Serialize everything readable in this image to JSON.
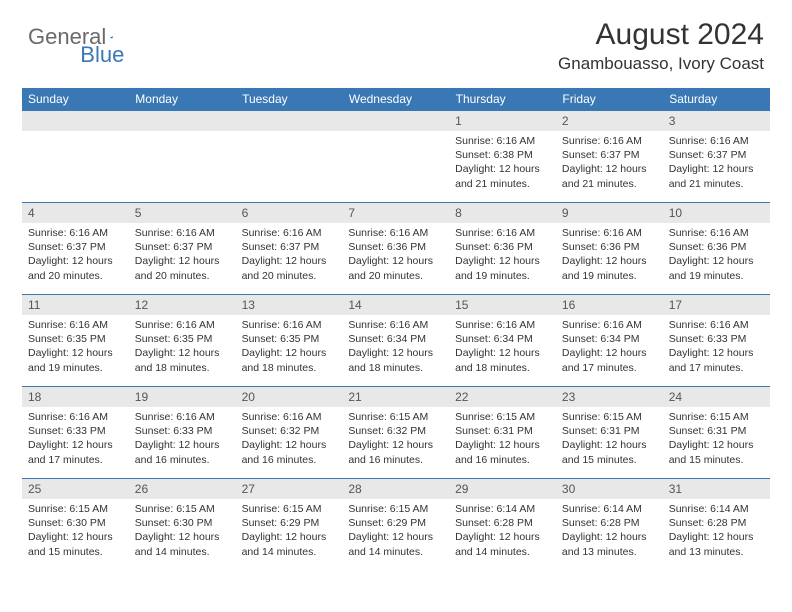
{
  "logo": {
    "text1": "General",
    "text2": "Blue",
    "color1": "#6a6a6a",
    "color2": "#3a78b5"
  },
  "title": "August 2024",
  "location": "Gnambouasso, Ivory Coast",
  "header_bg": "#3a78b5",
  "header_fg": "#ffffff",
  "daynum_bg": "#e8e8e8",
  "page_bg": "#ffffff",
  "text_color": "#333333",
  "font_family": "Arial, Helvetica, sans-serif",
  "title_fontsize": 30,
  "location_fontsize": 17,
  "weekday_fontsize": 12,
  "detail_fontsize": 10.5,
  "weekdays": [
    "Sunday",
    "Monday",
    "Tuesday",
    "Wednesday",
    "Thursday",
    "Friday",
    "Saturday"
  ],
  "weeks": [
    [
      null,
      null,
      null,
      null,
      {
        "n": "1",
        "sr": "6:16 AM",
        "ss": "6:38 PM",
        "dl": "12 hours and 21 minutes."
      },
      {
        "n": "2",
        "sr": "6:16 AM",
        "ss": "6:37 PM",
        "dl": "12 hours and 21 minutes."
      },
      {
        "n": "3",
        "sr": "6:16 AM",
        "ss": "6:37 PM",
        "dl": "12 hours and 21 minutes."
      }
    ],
    [
      {
        "n": "4",
        "sr": "6:16 AM",
        "ss": "6:37 PM",
        "dl": "12 hours and 20 minutes."
      },
      {
        "n": "5",
        "sr": "6:16 AM",
        "ss": "6:37 PM",
        "dl": "12 hours and 20 minutes."
      },
      {
        "n": "6",
        "sr": "6:16 AM",
        "ss": "6:37 PM",
        "dl": "12 hours and 20 minutes."
      },
      {
        "n": "7",
        "sr": "6:16 AM",
        "ss": "6:36 PM",
        "dl": "12 hours and 20 minutes."
      },
      {
        "n": "8",
        "sr": "6:16 AM",
        "ss": "6:36 PM",
        "dl": "12 hours and 19 minutes."
      },
      {
        "n": "9",
        "sr": "6:16 AM",
        "ss": "6:36 PM",
        "dl": "12 hours and 19 minutes."
      },
      {
        "n": "10",
        "sr": "6:16 AM",
        "ss": "6:36 PM",
        "dl": "12 hours and 19 minutes."
      }
    ],
    [
      {
        "n": "11",
        "sr": "6:16 AM",
        "ss": "6:35 PM",
        "dl": "12 hours and 19 minutes."
      },
      {
        "n": "12",
        "sr": "6:16 AM",
        "ss": "6:35 PM",
        "dl": "12 hours and 18 minutes."
      },
      {
        "n": "13",
        "sr": "6:16 AM",
        "ss": "6:35 PM",
        "dl": "12 hours and 18 minutes."
      },
      {
        "n": "14",
        "sr": "6:16 AM",
        "ss": "6:34 PM",
        "dl": "12 hours and 18 minutes."
      },
      {
        "n": "15",
        "sr": "6:16 AM",
        "ss": "6:34 PM",
        "dl": "12 hours and 18 minutes."
      },
      {
        "n": "16",
        "sr": "6:16 AM",
        "ss": "6:34 PM",
        "dl": "12 hours and 17 minutes."
      },
      {
        "n": "17",
        "sr": "6:16 AM",
        "ss": "6:33 PM",
        "dl": "12 hours and 17 minutes."
      }
    ],
    [
      {
        "n": "18",
        "sr": "6:16 AM",
        "ss": "6:33 PM",
        "dl": "12 hours and 17 minutes."
      },
      {
        "n": "19",
        "sr": "6:16 AM",
        "ss": "6:33 PM",
        "dl": "12 hours and 16 minutes."
      },
      {
        "n": "20",
        "sr": "6:16 AM",
        "ss": "6:32 PM",
        "dl": "12 hours and 16 minutes."
      },
      {
        "n": "21",
        "sr": "6:15 AM",
        "ss": "6:32 PM",
        "dl": "12 hours and 16 minutes."
      },
      {
        "n": "22",
        "sr": "6:15 AM",
        "ss": "6:31 PM",
        "dl": "12 hours and 16 minutes."
      },
      {
        "n": "23",
        "sr": "6:15 AM",
        "ss": "6:31 PM",
        "dl": "12 hours and 15 minutes."
      },
      {
        "n": "24",
        "sr": "6:15 AM",
        "ss": "6:31 PM",
        "dl": "12 hours and 15 minutes."
      }
    ],
    [
      {
        "n": "25",
        "sr": "6:15 AM",
        "ss": "6:30 PM",
        "dl": "12 hours and 15 minutes."
      },
      {
        "n": "26",
        "sr": "6:15 AM",
        "ss": "6:30 PM",
        "dl": "12 hours and 14 minutes."
      },
      {
        "n": "27",
        "sr": "6:15 AM",
        "ss": "6:29 PM",
        "dl": "12 hours and 14 minutes."
      },
      {
        "n": "28",
        "sr": "6:15 AM",
        "ss": "6:29 PM",
        "dl": "12 hours and 14 minutes."
      },
      {
        "n": "29",
        "sr": "6:14 AM",
        "ss": "6:28 PM",
        "dl": "12 hours and 14 minutes."
      },
      {
        "n": "30",
        "sr": "6:14 AM",
        "ss": "6:28 PM",
        "dl": "12 hours and 13 minutes."
      },
      {
        "n": "31",
        "sr": "6:14 AM",
        "ss": "6:28 PM",
        "dl": "12 hours and 13 minutes."
      }
    ]
  ],
  "labels": {
    "sunrise": "Sunrise:",
    "sunset": "Sunset:",
    "daylight": "Daylight:"
  }
}
